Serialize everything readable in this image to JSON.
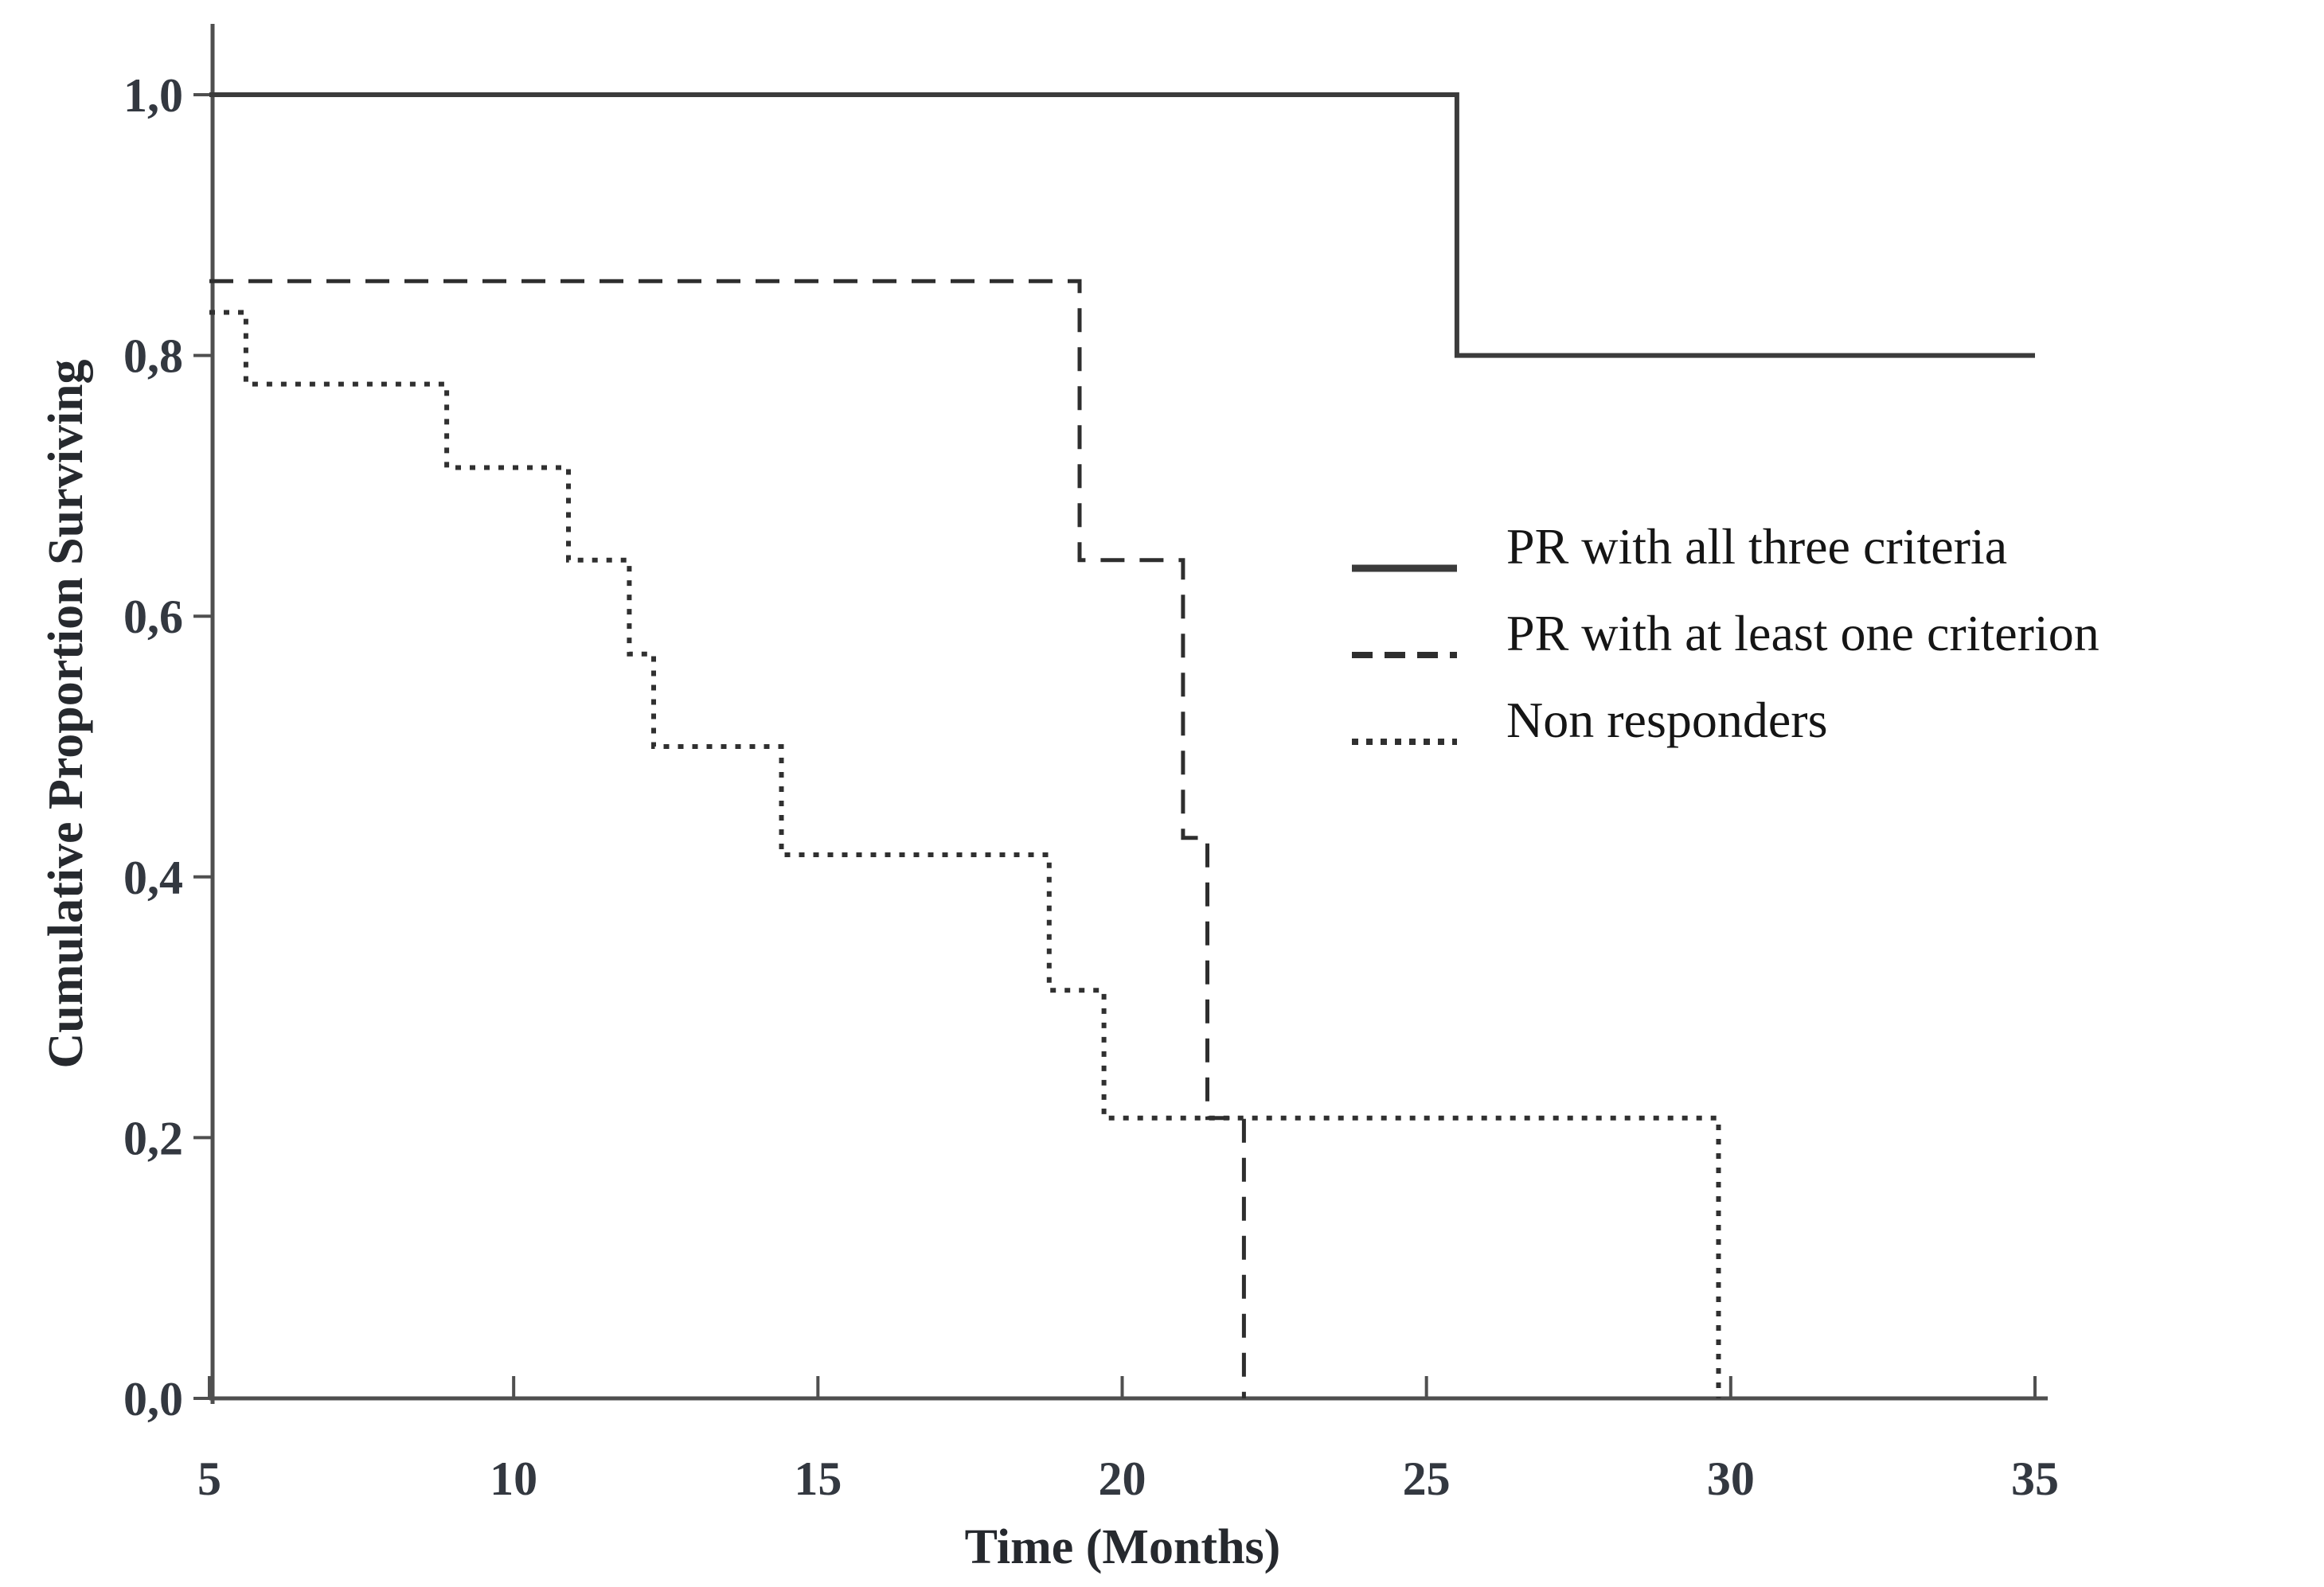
{
  "chart_data": {
    "type": "line",
    "subtype": "kaplan-meier-step",
    "title": "",
    "xlabel": "Time (Months)",
    "ylabel": "Cumulative Proportion Surviving",
    "xlim": [
      5,
      35
    ],
    "ylim": [
      0.0,
      1.0
    ],
    "grid": false,
    "legend_position": "center-right",
    "x_ticks": [
      5,
      10,
      15,
      20,
      25,
      30,
      35
    ],
    "x_tick_labels": [
      "5",
      "10",
      "15",
      "20",
      "25",
      "30",
      "35"
    ],
    "y_ticks": [
      1.0,
      0.8,
      0.6,
      0.4,
      0.2,
      0.0
    ],
    "y_tick_labels": [
      "1,0",
      "0,8",
      "0,6",
      "0,4",
      "0,2",
      "0,0"
    ],
    "series": [
      {
        "name": "PR with all three criteria",
        "style": "solid",
        "points": [
          [
            5,
            1.0
          ],
          [
            25.5,
            1.0
          ],
          [
            25.5,
            0.8
          ],
          [
            35,
            0.8
          ]
        ]
      },
      {
        "name": "PR with at least one criterion",
        "style": "dashed",
        "points": [
          [
            5,
            0.857
          ],
          [
            19.3,
            0.857
          ],
          [
            19.3,
            0.643
          ],
          [
            21.0,
            0.643
          ],
          [
            21.0,
            0.43
          ],
          [
            21.4,
            0.43
          ],
          [
            21.4,
            0.215
          ],
          [
            22.0,
            0.215
          ],
          [
            22.0,
            0.0
          ]
        ]
      },
      {
        "name": "Non responders",
        "style": "dotted",
        "points": [
          [
            5,
            0.833
          ],
          [
            5.6,
            0.833
          ],
          [
            5.6,
            0.778
          ],
          [
            8.9,
            0.778
          ],
          [
            8.9,
            0.714
          ],
          [
            10.9,
            0.714
          ],
          [
            10.9,
            0.643
          ],
          [
            11.9,
            0.643
          ],
          [
            11.9,
            0.571
          ],
          [
            12.3,
            0.571
          ],
          [
            12.3,
            0.5
          ],
          [
            14.4,
            0.5
          ],
          [
            14.4,
            0.417
          ],
          [
            18.8,
            0.417
          ],
          [
            18.8,
            0.313
          ],
          [
            19.7,
            0.313
          ],
          [
            19.7,
            0.215
          ],
          [
            29.8,
            0.215
          ],
          [
            29.8,
            0.0
          ]
        ]
      }
    ]
  },
  "legend": {
    "items": [
      {
        "label": "PR with all three criteria",
        "style": "solid"
      },
      {
        "label": "PR with at least one criterion",
        "style": "dashed"
      },
      {
        "label": "Non responders",
        "style": "dotted"
      }
    ]
  },
  "colors": {
    "ink": "#2e2e2e",
    "axis": "#4f4f4f",
    "background": "#ffffff"
  }
}
